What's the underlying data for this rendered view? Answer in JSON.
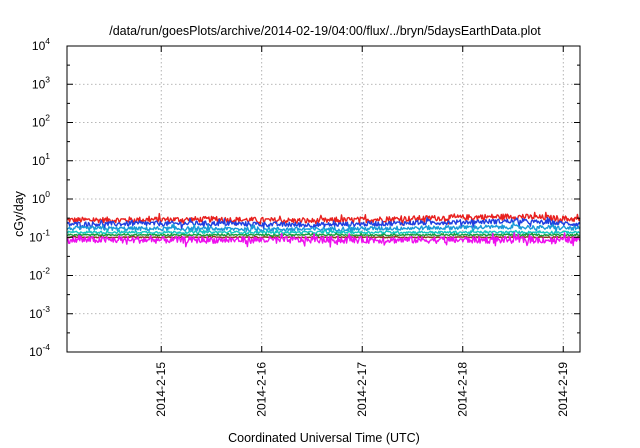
{
  "chart_data": {
    "type": "line",
    "title": "/data/run/goesPlots/archive/2014-02-19/04:00/flux/../bryn/5daysEarthData.plot",
    "xlabel": "Coordinated Universal Time (UTC)",
    "ylabel": "cGy/day",
    "yscale": "log",
    "xlim": [
      "2014-02-14T01:30",
      "2014-02-19T04:00"
    ],
    "ylim": [
      0.0001,
      10000
    ],
    "grid": true,
    "x_ticks": [
      {
        "date": "2014-02-15",
        "label": "2014-2-15"
      },
      {
        "date": "2014-02-16",
        "label": "2014-2-16"
      },
      {
        "date": "2014-02-17",
        "label": "2014-2-17"
      },
      {
        "date": "2014-02-18",
        "label": "2014-2-18"
      },
      {
        "date": "2014-02-19",
        "label": "2014-2-19"
      }
    ],
    "y_ticks": [
      {
        "value": 0.0001,
        "base": "10",
        "exp": "-4"
      },
      {
        "value": 0.001,
        "base": "10",
        "exp": "-3"
      },
      {
        "value": 0.01,
        "base": "10",
        "exp": "-2"
      },
      {
        "value": 0.1,
        "base": "10",
        "exp": "-1"
      },
      {
        "value": 1,
        "base": "10",
        "exp": "0"
      },
      {
        "value": 10,
        "base": "10",
        "exp": "1"
      },
      {
        "value": 100,
        "base": "10",
        "exp": "2"
      },
      {
        "value": 1000,
        "base": "10",
        "exp": "3"
      },
      {
        "value": 10000,
        "base": "10",
        "exp": "4"
      }
    ],
    "series": [
      {
        "color": "#e8201e",
        "level": 0.28,
        "spread": 0.3,
        "drift": [
          [
            "2014-02-14T01:30",
            1.0
          ],
          [
            "2014-02-15T12:00",
            1.05
          ],
          [
            "2014-02-16T12:00",
            0.95
          ],
          [
            "2014-02-18T12:00",
            1.25
          ],
          [
            "2014-02-19T04:00",
            1.05
          ]
        ]
      },
      {
        "color": "#1f3fe0",
        "level": 0.22,
        "spread": 0.25,
        "drift": [
          [
            "2014-02-14T01:30",
            1.0
          ],
          [
            "2014-02-15T12:00",
            1.05
          ],
          [
            "2014-02-16T12:00",
            0.95
          ],
          [
            "2014-02-18T12:00",
            1.2
          ],
          [
            "2014-02-19T04:00",
            1.0
          ]
        ]
      },
      {
        "color": "#1a9ad8",
        "level": 0.17,
        "spread": 0.22,
        "drift": [
          [
            "2014-02-14T01:30",
            1.0
          ],
          [
            "2014-02-16T12:00",
            0.95
          ],
          [
            "2014-02-18T12:00",
            1.1
          ],
          [
            "2014-02-19T04:00",
            1.0
          ]
        ]
      },
      {
        "color": "#10c8c0",
        "level": 0.135,
        "spread": 0.12,
        "drift": [
          [
            "2014-02-14T01:30",
            1.0
          ],
          [
            "2014-02-19T04:00",
            1.0
          ]
        ]
      },
      {
        "color": "#1a9a3a",
        "level": 0.115,
        "spread": 0.08,
        "drift": [
          [
            "2014-02-14T01:30",
            1.0
          ],
          [
            "2014-02-19T04:00",
            1.0
          ]
        ]
      },
      {
        "color": "#8b3a1a",
        "level": 0.1,
        "spread": 0.06,
        "drift": [
          [
            "2014-02-14T01:30",
            1.0
          ],
          [
            "2014-02-19T04:00",
            1.0
          ]
        ]
      },
      {
        "color": "#ee10ee",
        "level": 0.085,
        "spread": 0.35,
        "drift": [
          [
            "2014-02-14T01:30",
            1.0
          ],
          [
            "2014-02-19T04:00",
            1.0
          ]
        ]
      }
    ]
  }
}
